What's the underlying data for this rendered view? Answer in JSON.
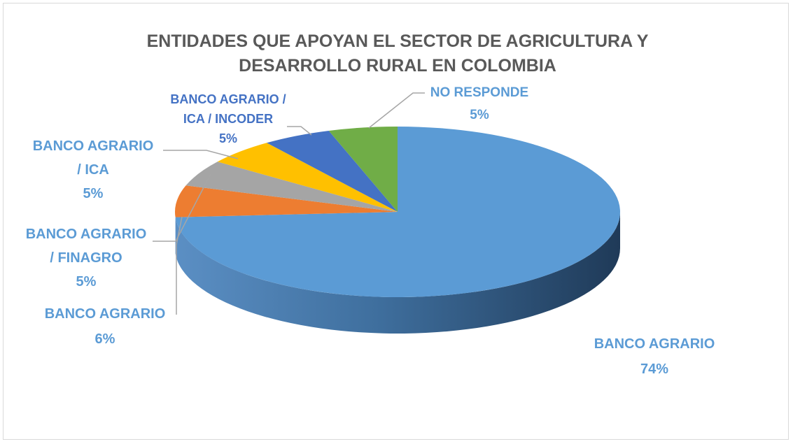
{
  "chart_data": {
    "type": "pie",
    "title_lines": [
      "ENTIDADES QUE APOYAN EL SECTOR DE AGRICULTURA Y",
      "DESARROLLO  RURAL EN COLOMBIA"
    ],
    "slices": [
      {
        "label_lines": [
          "BANCO AGRARIO"
        ],
        "value_label": "74%",
        "value": 74,
        "color": "#5b9bd5"
      },
      {
        "label_lines": [
          "BANCO AGRARIO"
        ],
        "value_label": "6%",
        "value": 6,
        "color": "#ed7d31"
      },
      {
        "label_lines": [
          "BANCO AGRARIO",
          "/ FINAGRO"
        ],
        "value_label": "5%",
        "value": 5,
        "color": "#a5a5a5"
      },
      {
        "label_lines": [
          "BANCO AGRARIO",
          "/ ICA"
        ],
        "value_label": "5%",
        "value": 5,
        "color": "#ffc000"
      },
      {
        "label_lines": [
          "BANCO AGRARIO /",
          "ICA / INCODER"
        ],
        "value_label": "5%",
        "value": 5,
        "color": "#4472c4"
      },
      {
        "label_lines": [
          "NO RESPONDE"
        ],
        "value_label": "5%",
        "value": 5,
        "color": "#70ad47"
      }
    ],
    "title_color": "#595959",
    "label_color": "#5b9bd5",
    "dark_label_color": "#4472c4"
  }
}
